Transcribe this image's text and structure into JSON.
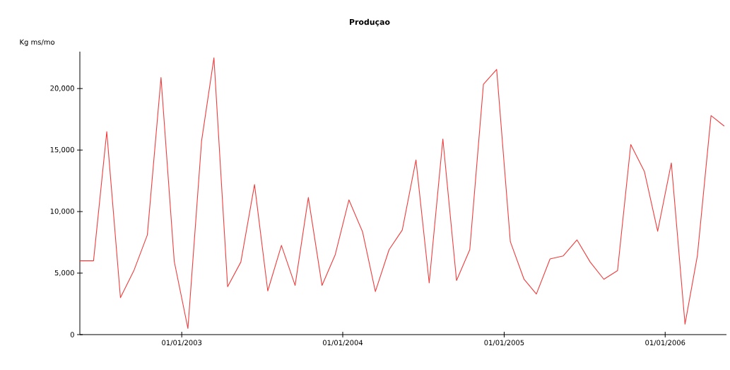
{
  "chart_data": {
    "type": "line",
    "title": "**Produçao**",
    "ylabel": "Kg ms/mo",
    "x": [
      "2002-05-15",
      "2002-06-15",
      "2002-07-15",
      "2002-08-15",
      "2002-09-15",
      "2002-10-15",
      "2002-11-15",
      "2002-12-15",
      "2003-01-15",
      "2003-02-15",
      "2003-03-15",
      "2003-04-15",
      "2003-05-15",
      "2003-06-15",
      "2003-07-15",
      "2003-08-15",
      "2003-09-15",
      "2003-10-15",
      "2003-11-15",
      "2003-12-15",
      "2004-01-15",
      "2004-02-15",
      "2004-03-15",
      "2004-04-15",
      "2004-05-15",
      "2004-06-15",
      "2004-07-15",
      "2004-08-15",
      "2004-09-15",
      "2004-10-15",
      "2004-11-15",
      "2004-12-15",
      "2005-01-15",
      "2005-02-15",
      "2005-03-15",
      "2005-04-15",
      "2005-05-15",
      "2005-06-15",
      "2005-07-15",
      "2005-08-15",
      "2005-09-15",
      "2005-10-15",
      "2005-11-15",
      "2005-12-15",
      "2006-01-15",
      "2006-02-15",
      "2006-03-15",
      "2006-04-15",
      "2006-05-15"
    ],
    "series": [
      {
        "color": "#f03c3c",
        "values": [
          6000,
          6000,
          16500,
          3000,
          5250,
          8100,
          20900,
          5950,
          500,
          15750,
          22500,
          3900,
          5900,
          12200,
          3550,
          7250,
          4000,
          11150,
          4000,
          6500,
          10950,
          8350,
          3500,
          6900,
          8500,
          14200,
          4200,
          15900,
          4400,
          6900,
          20350,
          21550,
          7550,
          4500,
          3300,
          6150,
          6400,
          7700,
          5900,
          4500,
          5200,
          15450,
          13250,
          8400,
          13950,
          850,
          6400,
          17800,
          16950
        ]
      }
    ],
    "xlim": [
      "2002-05-15",
      "2006-05-20"
    ],
    "ylim": [
      0,
      23000
    ],
    "xticks": [
      {
        "value": "2003-01-01",
        "label": "01/01/2003"
      },
      {
        "value": "2004-01-01",
        "label": "01/01/2004"
      },
      {
        "value": "2005-01-01",
        "label": "01/01/2005"
      },
      {
        "value": "2006-01-01",
        "label": "01/01/2006"
      }
    ],
    "yticks": [
      {
        "value": 0,
        "label": "0"
      },
      {
        "value": 5000,
        "label": "5,000"
      },
      {
        "value": 10000,
        "label": "10,000"
      },
      {
        "value": 15000,
        "label": "15,000"
      },
      {
        "value": 20000,
        "label": "20,000"
      }
    ],
    "grid": false,
    "marker": "none",
    "line_style": "solid"
  }
}
